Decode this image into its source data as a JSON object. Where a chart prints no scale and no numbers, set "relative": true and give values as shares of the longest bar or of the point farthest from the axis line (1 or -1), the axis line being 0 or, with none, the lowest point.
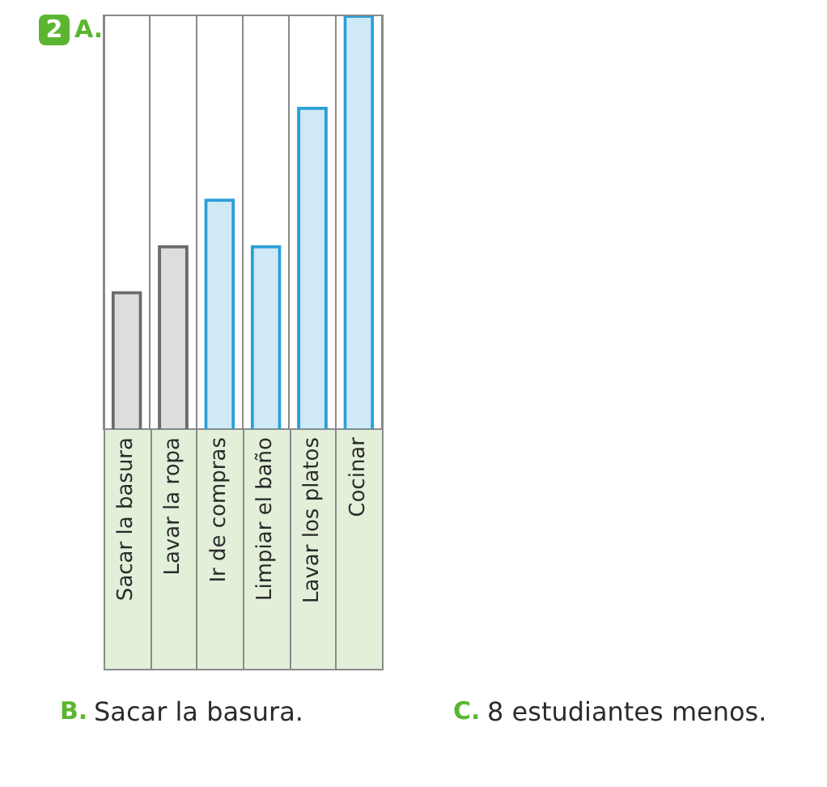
{
  "chart_data": {
    "type": "bar",
    "categories": [
      "Sacar la basura",
      "Lavar la ropa",
      "Ir de compras",
      "Limpiar el baño",
      "Lavar los platos",
      "Cocinar"
    ],
    "values": [
      0.333,
      0.444,
      0.556,
      0.444,
      0.778,
      1
    ],
    "colors": [
      "#6b6b6b",
      "#6b6b6b",
      "#2a9fd8",
      "#2a9fd8",
      "#2a9fd8",
      "#2a9fd8"
    ],
    "relative": true,
    "grid": "x",
    "annotations": [
      "2",
      "A.",
      "B.",
      "Sacar la basura.",
      "C.",
      "8 estudiantes menos."
    ]
  }
}
